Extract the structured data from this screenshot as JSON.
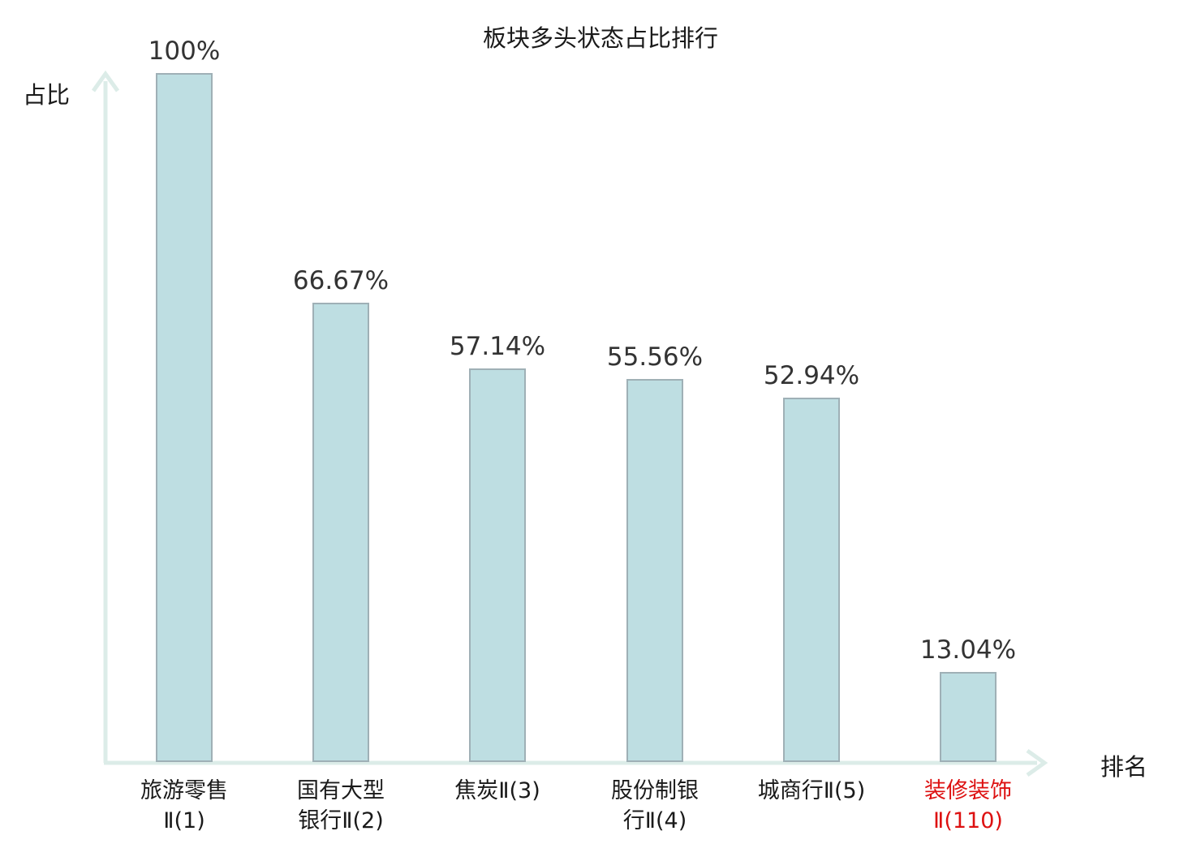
{
  "chart_data": {
    "type": "bar",
    "title": "板块多头状态占比排行",
    "xlabel": "排名",
    "ylabel": "占比",
    "categories": [
      "旅游零售Ⅱ(1)",
      "国有大型银行Ⅱ(2)",
      "焦炭Ⅱ(3)",
      "股份制银行Ⅱ(4)",
      "城商行Ⅱ(5)",
      "装修装饰Ⅱ(110)"
    ],
    "category_lines": [
      [
        "旅游零售",
        "Ⅱ(1)"
      ],
      [
        "国有大型",
        "银行Ⅱ(2)"
      ],
      [
        "焦炭Ⅱ(3)"
      ],
      [
        "股份制银",
        "行Ⅱ(4)"
      ],
      [
        "城商行Ⅱ(5)"
      ],
      [
        "装修装饰",
        "Ⅱ(110)"
      ]
    ],
    "values": [
      100,
      66.67,
      57.14,
      55.56,
      52.94,
      13.04
    ],
    "value_labels": [
      "100%",
      "66.67%",
      "57.14%",
      "55.56%",
      "52.94%",
      "13.04%"
    ],
    "highlight_index": 5,
    "ylim": [
      0,
      100
    ],
    "grid": false,
    "legend": "none",
    "colors": {
      "bar_fill": "#bedee2",
      "bar_border": "#9fb0b6",
      "axis": "#dcece8",
      "text": "#1a1a1a",
      "value_text": "#333333",
      "highlight_text": "#dd1111"
    }
  }
}
